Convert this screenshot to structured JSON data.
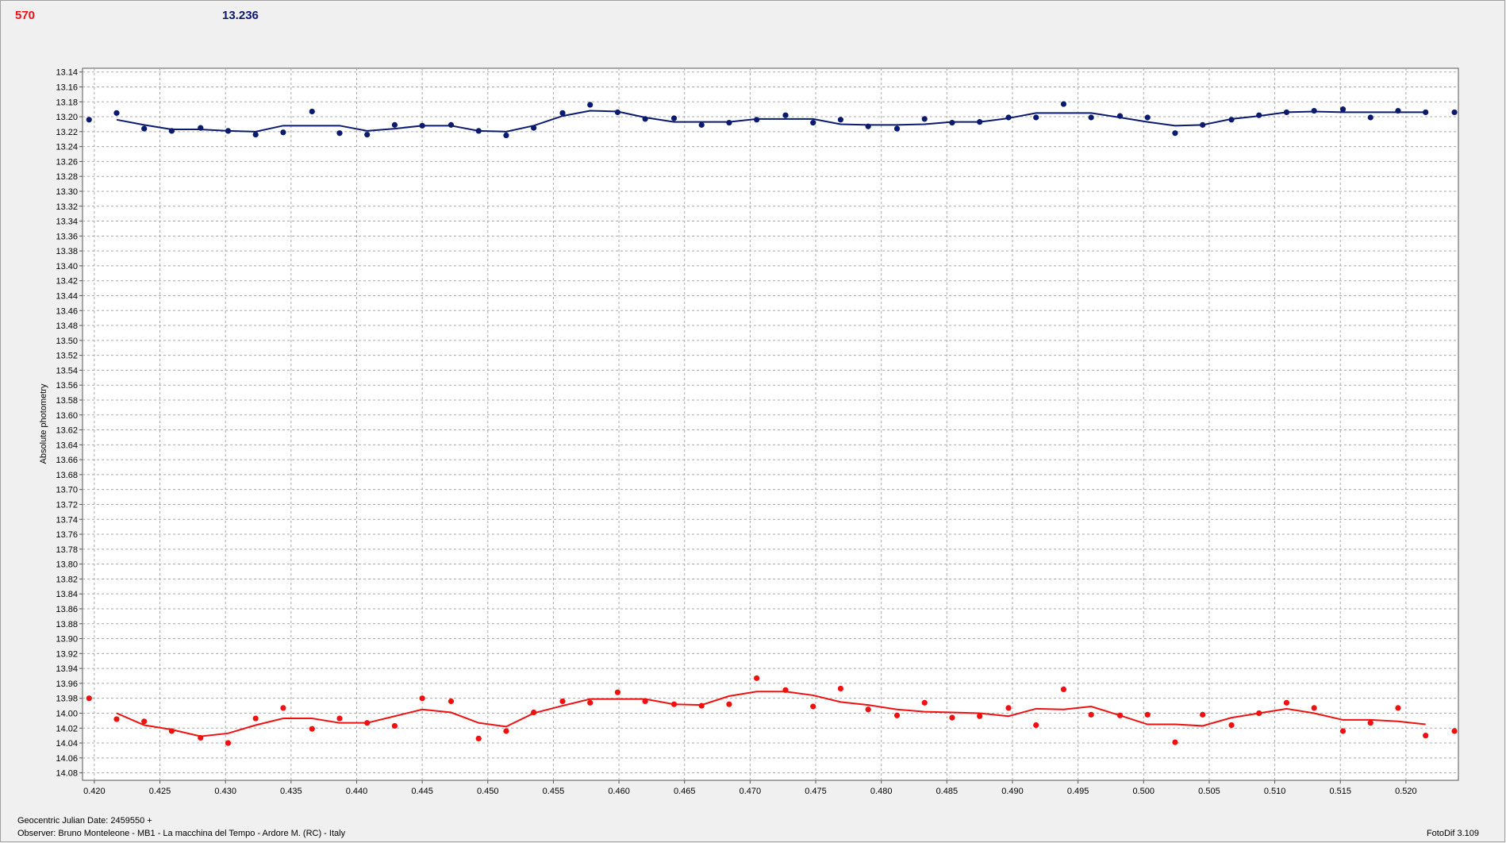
{
  "header": {
    "left": "570",
    "right": "13.236"
  },
  "footer": {
    "date": "Geocentric Julian Date: 2459550 +",
    "observer": "Observer: Bruno Monteleone - MB1 - La macchina del Tempo - Ardore M. (RC) - Italy",
    "software": "FotoDif 3.109"
  },
  "chart_data": {
    "type": "scatter",
    "y_label": "Absolute photometry",
    "y_inverted": true,
    "grid": true,
    "xlim": [
      0.4191,
      0.524
    ],
    "ylim": [
      13.135,
      14.09
    ],
    "xticks": [
      {
        "value": 0.42,
        "label": "0.420"
      },
      0.425,
      {
        "value": 0.43,
        "label": "0.430"
      },
      0.435,
      {
        "value": 0.44,
        "label": "0.440"
      },
      0.445,
      {
        "value": 0.45,
        "label": "0.450"
      },
      0.455,
      {
        "value": 0.46,
        "label": "0.460"
      },
      0.465,
      {
        "value": 0.47,
        "label": "0.470"
      },
      0.475,
      {
        "value": 0.48,
        "label": "0.480"
      },
      0.485,
      {
        "value": 0.49,
        "label": "0.490"
      },
      0.495,
      {
        "value": 0.5,
        "label": "0.500"
      },
      0.505,
      {
        "value": 0.51,
        "label": "0.510"
      },
      0.515,
      {
        "value": 0.52,
        "label": "0.520"
      }
    ],
    "yticks": [
      13.14,
      13.16,
      13.18,
      {
        "value": 13.2,
        "label": "13.20"
      },
      13.22,
      13.24,
      13.26,
      13.28,
      {
        "value": 13.3,
        "label": "13.30"
      },
      13.32,
      13.34,
      13.36,
      13.38,
      {
        "value": 13.4,
        "label": "13.40"
      },
      13.42,
      13.44,
      13.46,
      13.48,
      {
        "value": 13.5,
        "label": "13.50"
      },
      13.52,
      13.54,
      13.56,
      13.58,
      {
        "value": 13.6,
        "label": "13.60"
      },
      13.62,
      13.64,
      13.66,
      13.68,
      {
        "value": 13.7,
        "label": "13.70"
      },
      13.72,
      13.74,
      13.76,
      13.78,
      {
        "value": 13.8,
        "label": "13.80"
      },
      13.82,
      13.84,
      13.86,
      13.88,
      {
        "value": 13.9,
        "label": "13.90"
      },
      13.92,
      13.94,
      13.96,
      13.98,
      {
        "value": 14.0,
        "label": "14.00"
      },
      14.02,
      14.04,
      14.06,
      14.08
    ],
    "x": [
      0.4196,
      0.4217,
      0.4238,
      0.4259,
      0.4281,
      0.4302,
      0.4323,
      0.4344,
      0.4366,
      0.4387,
      0.4408,
      0.4429,
      0.445,
      0.4472,
      0.4493,
      0.4514,
      0.4535,
      0.4557,
      0.4578,
      0.4599,
      0.462,
      0.4642,
      0.4663,
      0.4684,
      0.4705,
      0.4727,
      0.4748,
      0.4769,
      0.479,
      0.4812,
      0.4833,
      0.4854,
      0.4875,
      0.4897,
      0.4918,
      0.4939,
      0.496,
      0.4982,
      0.5003,
      0.5024,
      0.5045,
      0.5067,
      0.5088,
      0.5109,
      0.513,
      0.5152,
      0.5173,
      0.5194,
      0.5215,
      0.5237
    ],
    "series": [
      {
        "style": "markers",
        "color": "#0a1a6e",
        "values": [
          13.204,
          13.195,
          13.216,
          13.219,
          13.215,
          13.219,
          13.224,
          13.221,
          13.193,
          13.222,
          13.224,
          13.211,
          13.212,
          13.211,
          13.219,
          13.225,
          13.215,
          13.195,
          13.184,
          13.194,
          13.203,
          13.202,
          13.211,
          13.208,
          13.204,
          13.198,
          13.208,
          13.204,
          13.213,
          13.216,
          13.203,
          13.208,
          13.207,
          13.201,
          13.201,
          13.183,
          13.201,
          13.199,
          13.201,
          13.222,
          13.211,
          13.204,
          13.198,
          13.194,
          13.192,
          13.19,
          13.201,
          13.192,
          13.194,
          13.194
        ]
      },
      {
        "style": "line",
        "color": "#0a1a6e",
        "values": [
          null,
          13.204,
          13.211,
          13.217,
          13.217,
          13.219,
          13.22,
          13.212,
          13.212,
          13.212,
          13.219,
          13.216,
          13.212,
          13.212,
          13.219,
          13.22,
          13.212,
          13.199,
          13.192,
          13.193,
          13.201,
          13.207,
          13.207,
          13.207,
          13.203,
          13.203,
          13.203,
          13.21,
          13.211,
          13.211,
          13.21,
          13.207,
          13.207,
          13.202,
          13.195,
          13.195,
          13.195,
          13.201,
          13.207,
          13.212,
          13.211,
          13.203,
          13.199,
          13.194,
          13.193,
          13.194,
          13.194,
          13.194,
          13.194,
          null
        ]
      },
      {
        "style": "markers",
        "color": "#f01010",
        "values": [
          13.98,
          14.008,
          14.011,
          14.024,
          14.033,
          14.04,
          14.007,
          13.993,
          14.021,
          14.007,
          14.013,
          14.017,
          13.98,
          13.984,
          14.034,
          14.024,
          13.999,
          13.984,
          13.986,
          13.972,
          13.984,
          13.988,
          13.99,
          13.988,
          13.953,
          13.969,
          13.991,
          13.967,
          13.995,
          14.003,
          13.986,
          14.006,
          14.004,
          13.993,
          14.016,
          13.968,
          14.002,
          14.003,
          14.002,
          14.039,
          14.002,
          14.016,
          14.0,
          13.986,
          13.993,
          14.024,
          14.013,
          13.993,
          14.03,
          14.024
        ]
      },
      {
        "style": "line",
        "color": "#f01010",
        "values": [
          null,
          14.0,
          14.016,
          14.022,
          14.031,
          14.027,
          14.016,
          14.007,
          14.007,
          14.013,
          14.013,
          14.004,
          13.995,
          13.999,
          14.013,
          14.018,
          14.0,
          13.99,
          13.981,
          13.981,
          13.981,
          13.988,
          13.989,
          13.977,
          13.971,
          13.971,
          13.976,
          13.985,
          13.989,
          13.995,
          13.998,
          13.999,
          14.0,
          14.004,
          13.994,
          13.995,
          13.991,
          14.003,
          14.015,
          14.015,
          14.017,
          14.006,
          14.0,
          13.994,
          14.0,
          14.009,
          14.009,
          14.011,
          14.015,
          null
        ]
      }
    ]
  }
}
